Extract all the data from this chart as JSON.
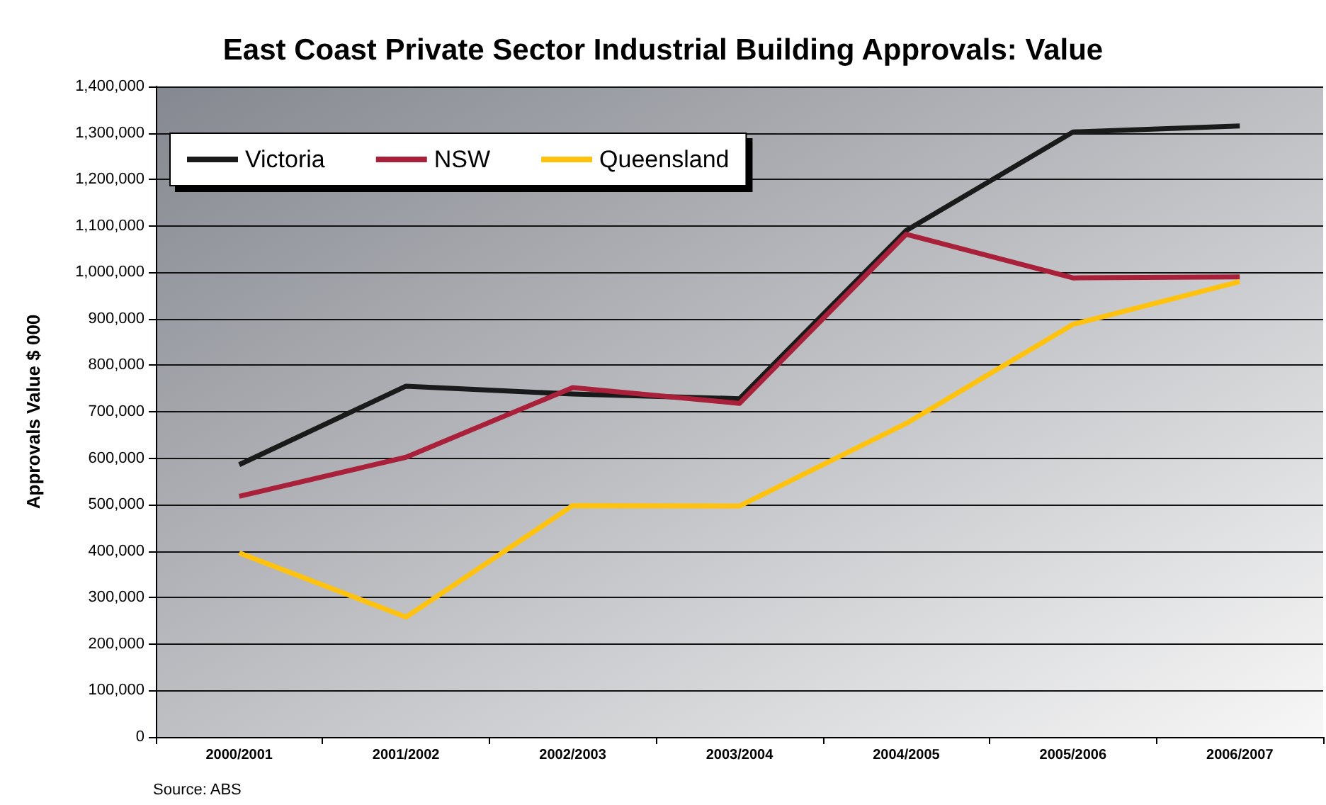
{
  "chart_data": {
    "type": "line",
    "title": "East Coast Private Sector Industrial Building Approvals: Value",
    "ylabel": "Approvals Value $ 000",
    "annotations": [
      "Source: ABS"
    ],
    "categories": [
      "2000/2001",
      "2001/2002",
      "2002/2003",
      "2003/2004",
      "2004/2005",
      "2005/2006",
      "2006/2007"
    ],
    "series": [
      {
        "name": "Victoria",
        "color": "#1a1a1a",
        "values": [
          586000,
          755000,
          738000,
          728000,
          1090000,
          1302000,
          1315000
        ]
      },
      {
        "name": "NSW",
        "color": "#a8203a",
        "values": [
          518000,
          602000,
          752000,
          718000,
          1082000,
          988000,
          990000
        ]
      },
      {
        "name": "Queensland",
        "color": "#ffc20e",
        "values": [
          396000,
          258000,
          498000,
          497000,
          675000,
          888000,
          980000
        ]
      }
    ],
    "ylim": [
      0,
      1400000
    ],
    "yticks": [
      0,
      {
        "value": 100000,
        "label": "100,000"
      },
      {
        "value": 200000,
        "label": "200,000"
      },
      {
        "value": 300000,
        "label": "300,000"
      },
      {
        "value": 400000,
        "label": "400,000"
      },
      {
        "value": 500000,
        "label": "500,000"
      },
      {
        "value": 600000,
        "label": "600,000"
      },
      {
        "value": 700000,
        "label": "700,000"
      },
      {
        "value": 800000,
        "label": "800,000"
      },
      {
        "value": 900000,
        "label": "900,000"
      },
      {
        "value": 1000000,
        "label": "1,000,000"
      },
      {
        "value": 1100000,
        "label": "1,100,000"
      },
      {
        "value": 1200000,
        "label": "1,200,000"
      },
      {
        "value": 1300000,
        "label": "1,300,000"
      },
      {
        "value": 1400000,
        "label": "1,400,000"
      }
    ],
    "grid": "y",
    "legend": "top left",
    "marker": "none",
    "line_style": "solid"
  }
}
